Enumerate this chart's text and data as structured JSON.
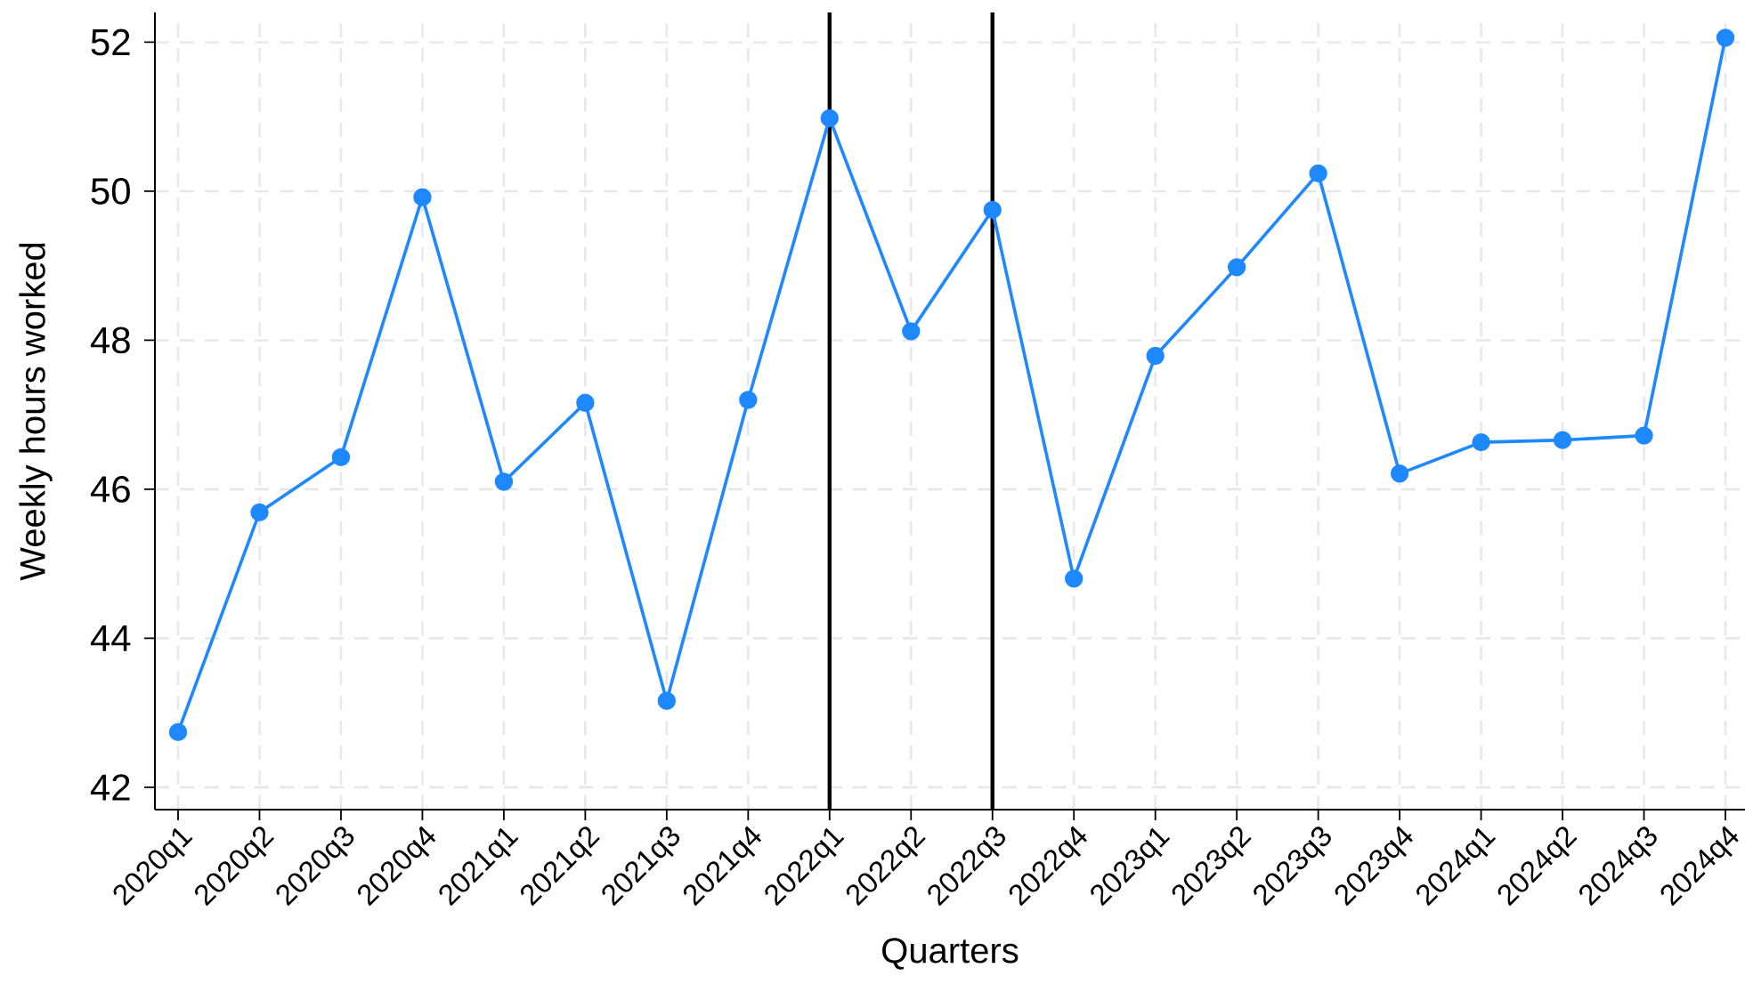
{
  "chart_data": {
    "type": "line",
    "xlabel": "Quarters",
    "ylabel": "Weekly hours worked",
    "categories": [
      "2020q1",
      "2020q2",
      "2020q3",
      "2020q4",
      "2021q1",
      "2021q2",
      "2021q3",
      "2021q4",
      "2022q1",
      "2022q2",
      "2022q3",
      "2022q4",
      "2023q1",
      "2023q2",
      "2023q3",
      "2023q4",
      "2024q1",
      "2024q2",
      "2024q3",
      "2024q4"
    ],
    "values": [
      42.74,
      45.69,
      46.43,
      49.92,
      46.1,
      47.16,
      43.16,
      47.2,
      50.98,
      48.12,
      49.75,
      44.8,
      47.79,
      48.98,
      50.24,
      46.21,
      46.63,
      46.66,
      46.72,
      52.06
    ],
    "color": "#1e88ff",
    "ylim": [
      41.7,
      52.4
    ],
    "yticks": [
      42,
      44,
      46,
      48,
      50,
      52
    ],
    "ref_lines": [
      {
        "axis": "x",
        "value": "2022q1",
        "color": "#000000"
      },
      {
        "axis": "x",
        "value": "2022q3",
        "color": "#000000"
      }
    ],
    "grid": true,
    "marker": "circle",
    "line_style": "solid"
  }
}
